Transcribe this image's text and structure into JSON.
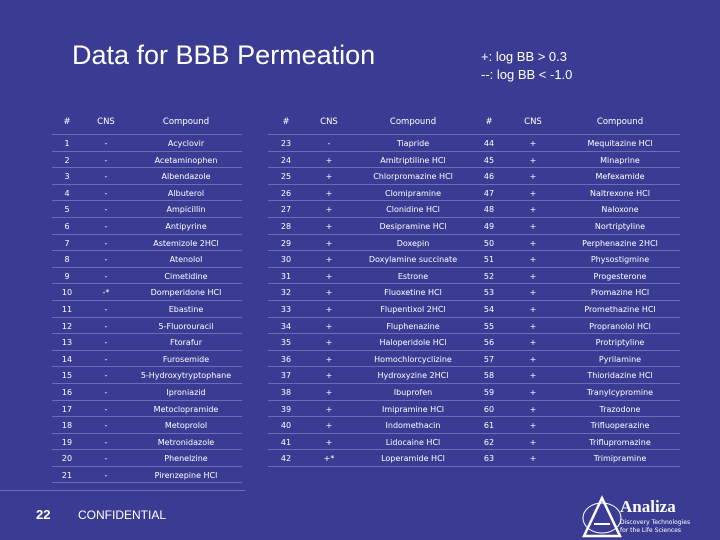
{
  "title": "Data for BBB Permeation",
  "legend": {
    "plus": "+: log BB > 0.3",
    "minus": "--: log BB < -1.0"
  },
  "headers": {
    "num": "#",
    "cns": "CNS",
    "compound": "Compound"
  },
  "table1": [
    {
      "n": "1",
      "c": "-",
      "name": "Acyclovir"
    },
    {
      "n": "2",
      "c": "-",
      "name": "Acetaminophen"
    },
    {
      "n": "3",
      "c": "-",
      "name": "Albendazole"
    },
    {
      "n": "4",
      "c": "-",
      "name": "Albuterol"
    },
    {
      "n": "5",
      "c": "-",
      "name": "Ampicillin"
    },
    {
      "n": "6",
      "c": "-",
      "name": "Antipyrine"
    },
    {
      "n": "7",
      "c": "-",
      "name": "Astemizole 2HCl"
    },
    {
      "n": "8",
      "c": "-",
      "name": "Atenolol"
    },
    {
      "n": "9",
      "c": "-",
      "name": "Cimetidine"
    },
    {
      "n": "10",
      "c": "-*",
      "name": "Domperidone HCl"
    },
    {
      "n": "11",
      "c": "-",
      "name": "Ebastine"
    },
    {
      "n": "12",
      "c": "-",
      "name": "5-Fluorouracil"
    },
    {
      "n": "13",
      "c": "-",
      "name": "Ftorafur"
    },
    {
      "n": "14",
      "c": "-",
      "name": "Furosemide"
    },
    {
      "n": "15",
      "c": "-",
      "name": "5-Hydroxytryptophane"
    },
    {
      "n": "16",
      "c": "-",
      "name": "Iproniazid"
    },
    {
      "n": "17",
      "c": "-",
      "name": "Metoclopramide"
    },
    {
      "n": "18",
      "c": "-",
      "name": "Metoprolol"
    },
    {
      "n": "19",
      "c": "-",
      "name": "Metronidazole"
    },
    {
      "n": "20",
      "c": "-",
      "name": "Phenelzine"
    },
    {
      "n": "21",
      "c": "-",
      "name": "Pirenzepine HCl"
    }
  ],
  "table2": [
    {
      "n": "23",
      "c": "-",
      "name": "Tiapride"
    },
    {
      "n": "24",
      "c": "+",
      "name": "Amitriptiline HCl"
    },
    {
      "n": "25",
      "c": "+",
      "name": "Chlorpromazine HCl"
    },
    {
      "n": "26",
      "c": "+",
      "name": "Clomipramine"
    },
    {
      "n": "27",
      "c": "+",
      "name": "Clonidine HCl"
    },
    {
      "n": "28",
      "c": "+",
      "name": "Desipramine HCl"
    },
    {
      "n": "29",
      "c": "+",
      "name": "Doxepin"
    },
    {
      "n": "30",
      "c": "+",
      "name": "Doxylamine succinate"
    },
    {
      "n": "31",
      "c": "+",
      "name": "Estrone"
    },
    {
      "n": "32",
      "c": "+",
      "name": "Fluoxetine HCl"
    },
    {
      "n": "33",
      "c": "+",
      "name": "Flupentixol 2HCl"
    },
    {
      "n": "34",
      "c": "+",
      "name": "Fluphenazine"
    },
    {
      "n": "35",
      "c": "+",
      "name": "Haloperidole HCl"
    },
    {
      "n": "36",
      "c": "+",
      "name": "Homochlorcyclizine"
    },
    {
      "n": "37",
      "c": "+",
      "name": "Hydroxyzine 2HCl"
    },
    {
      "n": "38",
      "c": "+",
      "name": "Ibuprofen"
    },
    {
      "n": "39",
      "c": "+",
      "name": "Imipramine HCl"
    },
    {
      "n": "40",
      "c": "+",
      "name": "Indomethacin"
    },
    {
      "n": "41",
      "c": "+",
      "name": "Lidocaine HCl"
    },
    {
      "n": "42",
      "c": "+*",
      "name": "Loperamide HCl"
    }
  ],
  "table3": [
    {
      "n": "44",
      "c": "+",
      "name": "Mequitazine HCl"
    },
    {
      "n": "45",
      "c": "+",
      "name": "Minaprine"
    },
    {
      "n": "46",
      "c": "+",
      "name": "Mefexamide"
    },
    {
      "n": "47",
      "c": "+",
      "name": "Naltrexone HCl"
    },
    {
      "n": "48",
      "c": "+",
      "name": "Naloxone"
    },
    {
      "n": "49",
      "c": "+",
      "name": "Nortriptyline"
    },
    {
      "n": "50",
      "c": "+",
      "name": "Perphenazine 2HCl"
    },
    {
      "n": "51",
      "c": "+",
      "name": "Physostigmine"
    },
    {
      "n": "52",
      "c": "+",
      "name": "Progesterone"
    },
    {
      "n": "53",
      "c": "+",
      "name": "Promazine HCl"
    },
    {
      "n": "54",
      "c": "+",
      "name": "Promethazine HCl"
    },
    {
      "n": "55",
      "c": "+",
      "name": "Propranolol HCl"
    },
    {
      "n": "56",
      "c": "+",
      "name": "Protriptyline"
    },
    {
      "n": "57",
      "c": "+",
      "name": "Pyrilamine"
    },
    {
      "n": "58",
      "c": "+",
      "name": "Thioridazine HCl"
    },
    {
      "n": "59",
      "c": "+",
      "name": "Tranylcypromine"
    },
    {
      "n": "60",
      "c": "+",
      "name": "Trazodone"
    },
    {
      "n": "61",
      "c": "+",
      "name": "Trifluoperazine"
    },
    {
      "n": "62",
      "c": "+",
      "name": "Triflupromazine"
    },
    {
      "n": "63",
      "c": "+",
      "name": "Trimipramine"
    }
  ],
  "footer": {
    "page": "22",
    "confidential": "CONFIDENTIAL"
  },
  "logo": {
    "name": "Analiza",
    "tag1": "Discovery Technologies",
    "tag2": "for the Life Sciences"
  }
}
